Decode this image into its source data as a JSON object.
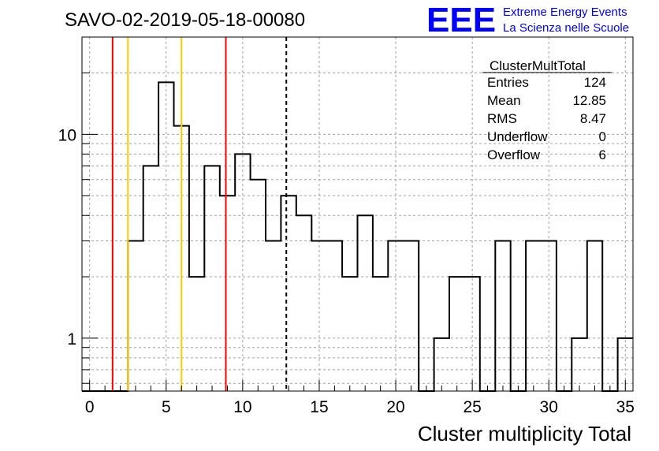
{
  "chart_data": {
    "type": "bar",
    "title": "SAVO-02-2019-05-18-00080",
    "xlabel": "Cluster multiplicity Total",
    "ylabel": "",
    "xlim": [
      -0.5,
      35.5
    ],
    "ylim": [
      0.55,
      30
    ],
    "yscale": "log",
    "grid": true,
    "x_ticks": [
      0,
      5,
      10,
      15,
      20,
      25,
      30,
      35
    ],
    "y_ticks": [
      {
        "value": 1,
        "label": "1"
      },
      {
        "value": 10,
        "label": "10"
      }
    ],
    "bin_edges": [
      -0.5,
      0.5,
      1.5,
      2.5,
      3.5,
      4.5,
      5.5,
      6.5,
      7.5,
      8.5,
      9.5,
      10.5,
      11.5,
      12.5,
      13.5,
      14.5,
      15.5,
      16.5,
      17.5,
      18.5,
      19.5,
      20.5,
      21.5,
      22.5,
      23.5,
      24.5,
      25.5,
      26.5,
      27.5,
      28.5,
      29.5,
      30.5,
      31.5,
      32.5,
      33.5,
      34.5,
      35.5
    ],
    "values": [
      0,
      0,
      0,
      3,
      7,
      18,
      11,
      2,
      7,
      5,
      8,
      6,
      3,
      5,
      4,
      3,
      3,
      2,
      4,
      2,
      3,
      3,
      0,
      1,
      2,
      2,
      0,
      3,
      0,
      3,
      3,
      0,
      1,
      3,
      0,
      1
    ],
    "vertical_lines": [
      {
        "x": 1.5,
        "color": "#ff0000",
        "style": "solid"
      },
      {
        "x": 2.5,
        "color": "#ffcc00",
        "style": "solid"
      },
      {
        "x": 6.0,
        "color": "#ffcc00",
        "style": "solid"
      },
      {
        "x": 8.9,
        "color": "#ff0000",
        "style": "solid"
      },
      {
        "x": 12.85,
        "color": "#000000",
        "style": "dashed"
      }
    ],
    "stats_box": {
      "title": "ClusterMultTotal",
      "rows": [
        {
          "label": "Entries",
          "value": "124"
        },
        {
          "label": "Mean",
          "value": "12.85"
        },
        {
          "label": "RMS",
          "value": "8.47"
        },
        {
          "label": "Underflow",
          "value": "0"
        },
        {
          "label": "Overflow",
          "value": "6"
        }
      ]
    }
  },
  "logo": {
    "mark": "EEE",
    "line1": "Extreme Energy Events",
    "line2": "La Scienza nelle Scuole",
    "color": "#0000ff"
  }
}
